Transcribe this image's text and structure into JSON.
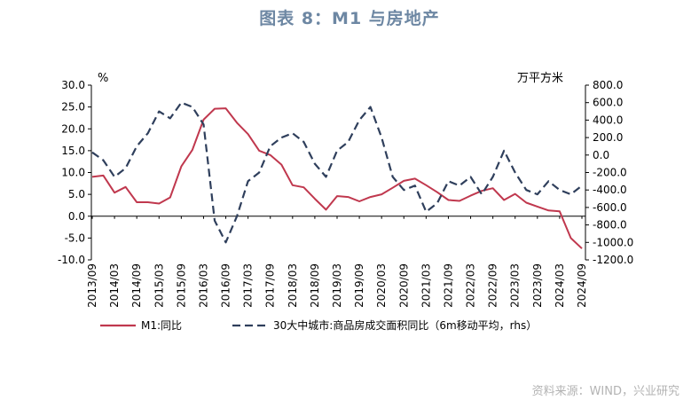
{
  "title": "图表 8：M1 与房地产",
  "source": "资料来源：WIND，兴业研究",
  "chart_data": {
    "type": "line",
    "x": [
      "2013/09",
      "2013/12",
      "2014/03",
      "2014/06",
      "2014/09",
      "2014/12",
      "2015/03",
      "2015/06",
      "2015/09",
      "2015/12",
      "2016/03",
      "2016/06",
      "2016/09",
      "2016/12",
      "2017/03",
      "2017/06",
      "2017/09",
      "2017/12",
      "2018/03",
      "2018/06",
      "2018/09",
      "2018/12",
      "2019/03",
      "2019/06",
      "2019/09",
      "2019/12",
      "2020/03",
      "2020/06",
      "2020/09",
      "2020/12",
      "2021/03",
      "2021/06",
      "2021/09",
      "2021/12",
      "2022/03",
      "2022/06",
      "2022/09",
      "2022/12",
      "2023/03",
      "2023/06",
      "2023/09",
      "2023/12",
      "2024/03",
      "2024/06",
      "2024/09"
    ],
    "x_tick_labels": [
      "2013/09",
      "2014/03",
      "2014/09",
      "2015/03",
      "2015/09",
      "2016/03",
      "2016/09",
      "2017/03",
      "2017/09",
      "2018/03",
      "2018/09",
      "2019/03",
      "2019/09",
      "2020/03",
      "2020/09",
      "2021/03",
      "2021/09",
      "2022/03",
      "2022/09",
      "2023/03",
      "2023/09",
      "2024/03",
      "2024/09"
    ],
    "y_left": {
      "unit": "%",
      "min": -10,
      "max": 30,
      "step": 5,
      "tick_labels": [
        "30.0",
        "25.0",
        "20.0",
        "15.0",
        "10.0",
        "5.0",
        "0.0",
        "-5.0",
        "-10.0"
      ]
    },
    "y_right": {
      "unit": "万平方米",
      "min": -1200,
      "max": 800,
      "step": 200,
      "tick_labels": [
        "800.0",
        "600.0",
        "400.0",
        "200.0",
        "0.0",
        "-200.0",
        "-400.0",
        "-600.0",
        "-800.0",
        "-1000.0",
        "-1200.0"
      ]
    },
    "series": [
      {
        "name": "M1:同比",
        "axis": "left",
        "color": "#c0384e",
        "style": "solid",
        "values": [
          9.0,
          9.3,
          5.4,
          6.7,
          3.2,
          3.2,
          2.9,
          4.3,
          11.4,
          15.2,
          22.1,
          24.6,
          24.7,
          21.4,
          18.8,
          15.0,
          14.0,
          11.8,
          7.1,
          6.6,
          4.0,
          1.5,
          4.6,
          4.4,
          3.4,
          4.4,
          5.0,
          6.5,
          8.1,
          8.6,
          7.1,
          5.5,
          3.7,
          3.5,
          4.7,
          5.8,
          6.4,
          3.7,
          5.1,
          3.1,
          2.2,
          1.3,
          1.1,
          -5.0,
          -7.4
        ]
      },
      {
        "name": "30大中城市:商品房成交面积同比（6m移动平均，rhs）",
        "axis": "right",
        "color": "#2f3f5c",
        "style": "dashed",
        "values": [
          30,
          -60,
          -250,
          -150,
          100,
          250,
          500,
          420,
          600,
          550,
          350,
          -750,
          -1000,
          -700,
          -300,
          -200,
          100,
          200,
          250,
          150,
          -100,
          -250,
          50,
          150,
          400,
          550,
          200,
          -250,
          -400,
          -350,
          -650,
          -550,
          -300,
          -350,
          -250,
          -450,
          -250,
          50,
          -200,
          -400,
          -450,
          -300,
          -400,
          -450,
          -350
        ]
      }
    ],
    "legend": "bottom",
    "grid": false
  }
}
